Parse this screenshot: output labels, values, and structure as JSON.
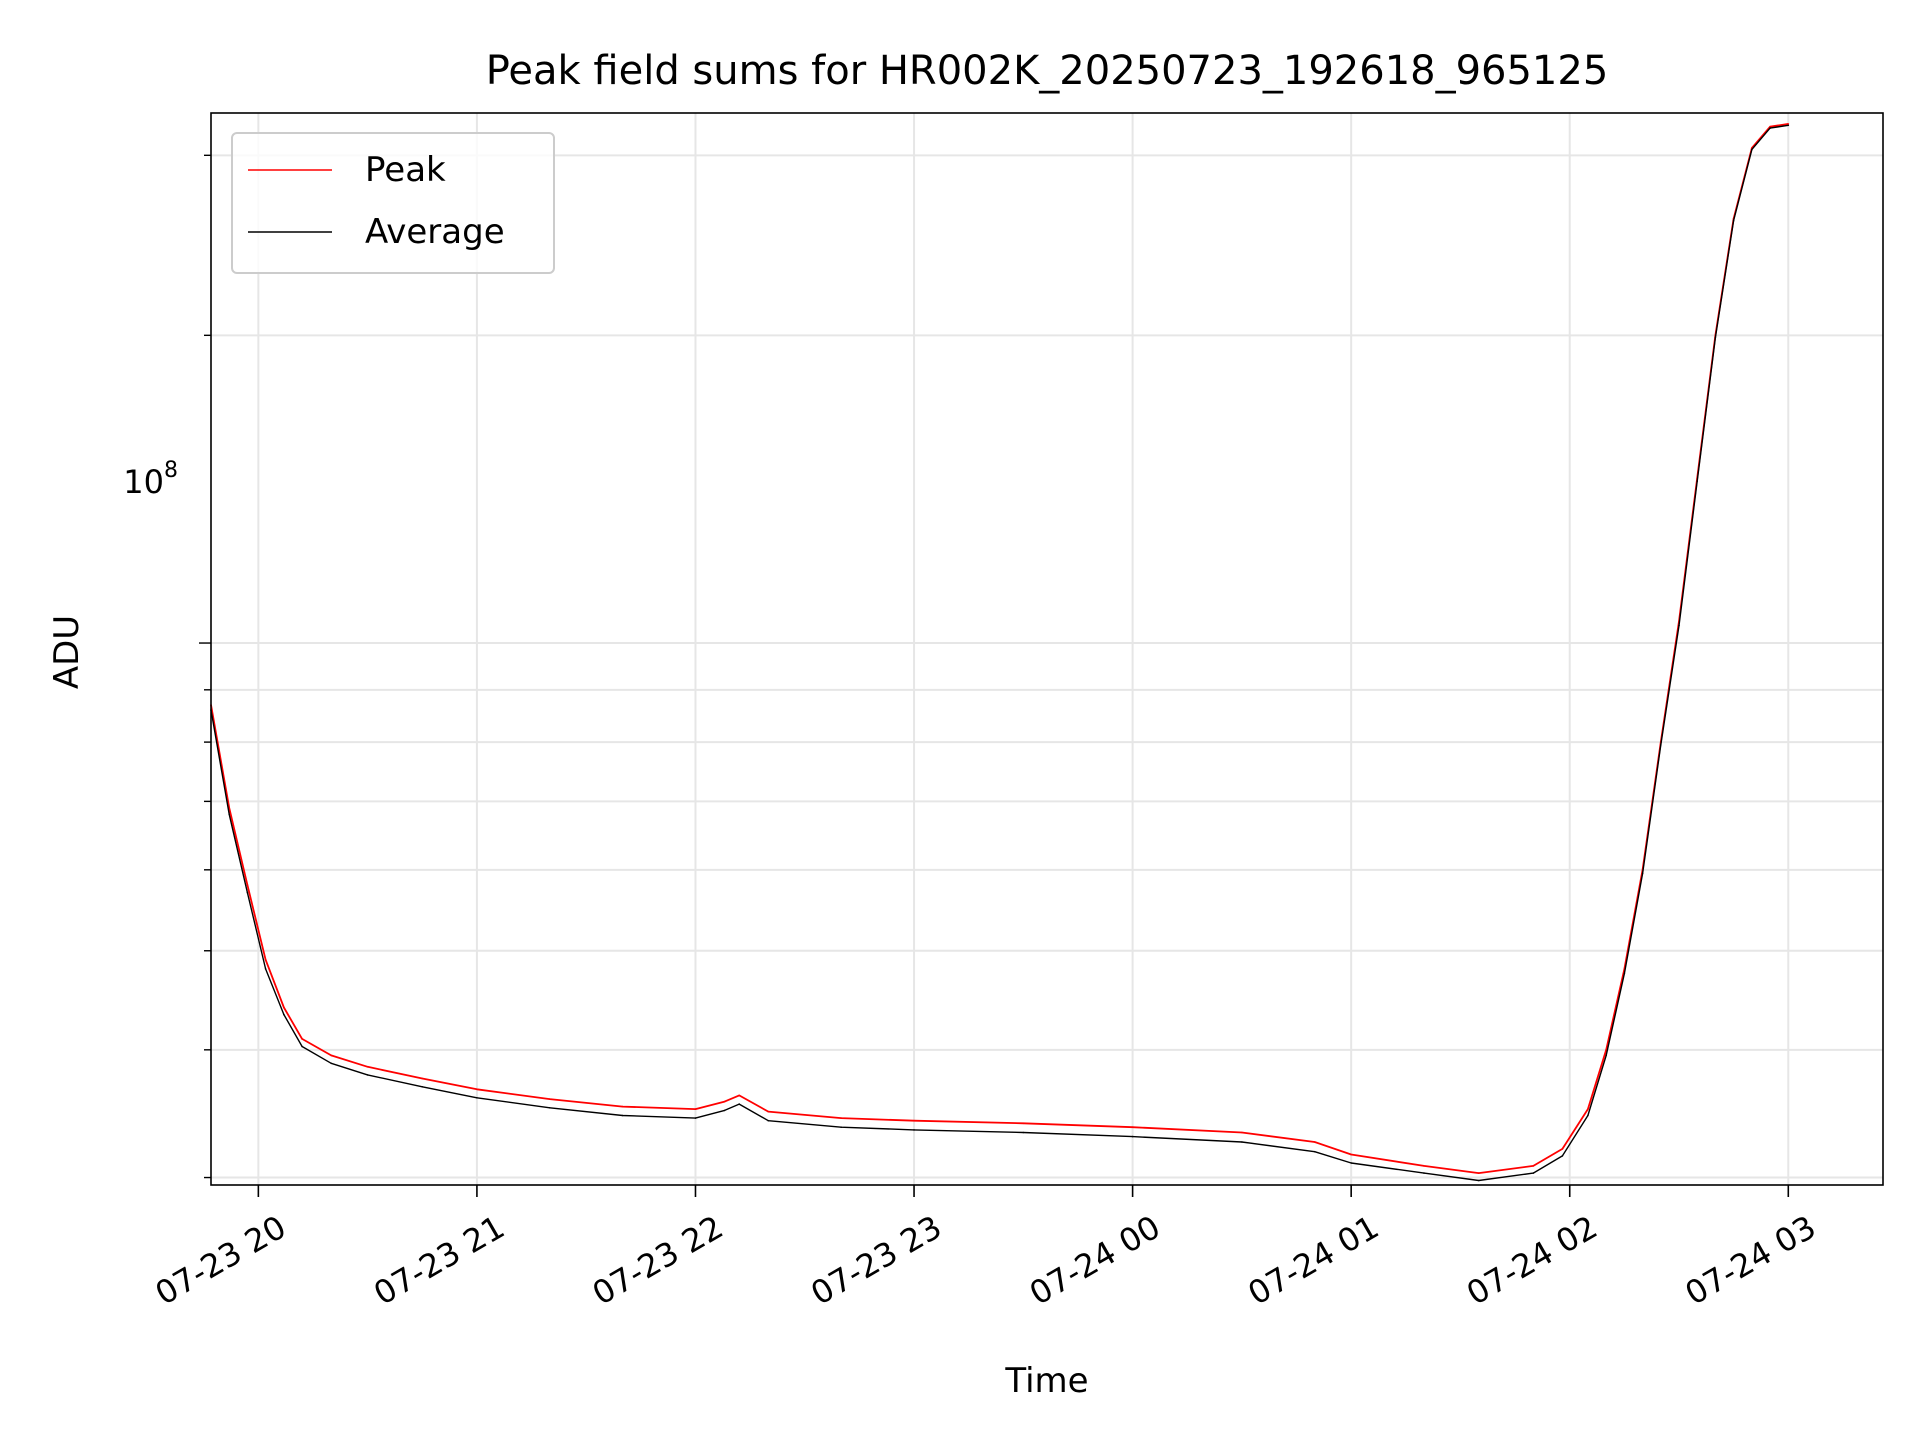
{
  "chart_data": {
    "type": "line",
    "title": "Peak field sums for HR002K_20250723_192618_965125",
    "xlabel": "Time",
    "ylabel": "ADU",
    "x_scale": "time",
    "y_scale": "log",
    "x_range": [
      "2025-07-23 19:47",
      "2025-07-24 03:26"
    ],
    "ylim": [
      29500000,
      330000000
    ],
    "x_tick_labels": [
      "07-23 20",
      "07-23 21",
      "07-23 22",
      "07-23 23",
      "07-24 00",
      "07-24 01",
      "07-24 02",
      "07-24 03"
    ],
    "y_tick_labels": [
      {
        "base": "10",
        "exp": "8"
      }
    ],
    "grid": true,
    "legend": "top-left",
    "colors": {
      "Peak": "#ff0000",
      "Average": "#000000"
    },
    "series": [
      {
        "name": "Peak",
        "color": "#ff0000",
        "x": [
          "2025-07-23 19:47",
          "2025-07-23 19:52",
          "2025-07-23 19:57",
          "2025-07-23 20:02",
          "2025-07-23 20:07",
          "2025-07-23 20:12",
          "2025-07-23 20:20",
          "2025-07-23 20:30",
          "2025-07-23 20:45",
          "2025-07-23 21:00",
          "2025-07-23 21:20",
          "2025-07-23 21:40",
          "2025-07-23 22:00",
          "2025-07-23 22:08",
          "2025-07-23 22:12",
          "2025-07-23 22:20",
          "2025-07-23 22:40",
          "2025-07-23 23:00",
          "2025-07-23 23:30",
          "2025-07-24 00:00",
          "2025-07-24 00:30",
          "2025-07-24 00:50",
          "2025-07-24 01:00",
          "2025-07-24 01:20",
          "2025-07-24 01:35",
          "2025-07-24 01:50",
          "2025-07-24 01:58",
          "2025-07-24 02:05",
          "2025-07-24 02:10",
          "2025-07-24 02:15",
          "2025-07-24 02:20",
          "2025-07-24 02:25",
          "2025-07-24 02:30",
          "2025-07-24 02:35",
          "2025-07-24 02:40",
          "2025-07-24 02:45",
          "2025-07-24 02:50",
          "2025-07-24 02:55",
          "2025-07-24 03:00"
        ],
        "values": [
          87000000,
          69000000,
          58000000,
          49000000,
          44000000,
          41000000,
          39500000,
          38500000,
          37500000,
          36600000,
          35800000,
          35200000,
          35000000,
          35600000,
          36100000,
          34800000,
          34300000,
          34100000,
          33900000,
          33600000,
          33200000,
          32500000,
          31600000,
          30800000,
          30300000,
          30800000,
          32000000,
          35000000,
          40000000,
          48000000,
          60000000,
          80000000,
          105000000,
          145000000,
          200000000,
          260000000,
          305000000,
          320000000,
          322000000
        ]
      },
      {
        "name": "Average",
        "color": "#000000",
        "x": [
          "2025-07-23 19:47",
          "2025-07-23 19:52",
          "2025-07-23 19:57",
          "2025-07-23 20:02",
          "2025-07-23 20:07",
          "2025-07-23 20:12",
          "2025-07-23 20:20",
          "2025-07-23 20:30",
          "2025-07-23 20:45",
          "2025-07-23 21:00",
          "2025-07-23 21:20",
          "2025-07-23 21:40",
          "2025-07-23 22:00",
          "2025-07-23 22:08",
          "2025-07-23 22:12",
          "2025-07-23 22:20",
          "2025-07-23 22:40",
          "2025-07-23 23:00",
          "2025-07-23 23:30",
          "2025-07-24 00:00",
          "2025-07-24 00:30",
          "2025-07-24 00:50",
          "2025-07-24 01:00",
          "2025-07-24 01:20",
          "2025-07-24 01:35",
          "2025-07-24 01:50",
          "2025-07-24 01:58",
          "2025-07-24 02:05",
          "2025-07-24 02:10",
          "2025-07-24 02:15",
          "2025-07-24 02:20",
          "2025-07-24 02:25",
          "2025-07-24 02:30",
          "2025-07-24 02:35",
          "2025-07-24 02:40",
          "2025-07-24 02:45",
          "2025-07-24 02:50",
          "2025-07-24 02:55",
          "2025-07-24 03:00"
        ],
        "values": [
          86000000,
          68000000,
          57000000,
          48000000,
          43300000,
          40300000,
          38800000,
          37800000,
          36800000,
          35900000,
          35100000,
          34500000,
          34300000,
          34900000,
          35400000,
          34100000,
          33600000,
          33400000,
          33200000,
          32900000,
          32500000,
          31800000,
          31000000,
          30300000,
          29800000,
          30300000,
          31500000,
          34500000,
          39500000,
          47500000,
          59500000,
          79500000,
          104000000,
          144000000,
          199000000,
          259000000,
          304000000,
          319000000,
          321000000
        ]
      }
    ]
  }
}
